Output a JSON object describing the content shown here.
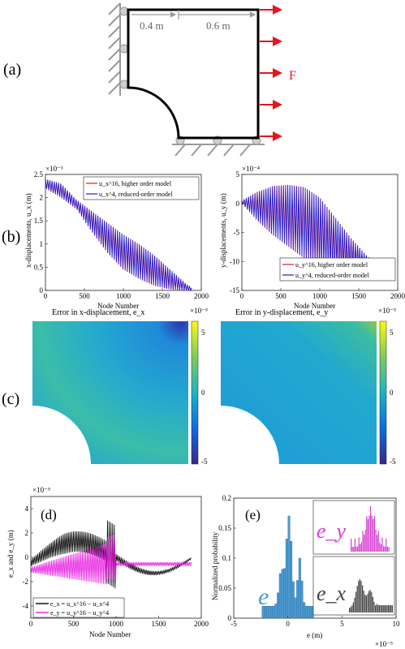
{
  "panels": {
    "a": {
      "label": "(a)",
      "dim_left": "0.4 m",
      "dim_right": "0.6 m",
      "force_label": "F",
      "colors": {
        "structure": "#000000",
        "force": "#e8141e",
        "support": "#999999",
        "roller": "#cfcfcf"
      }
    },
    "b": {
      "label": "(b)"
    },
    "c": {
      "label": "(c)"
    },
    "d": {
      "label": "(d)"
    },
    "e": {
      "label": "(e)"
    }
  },
  "chart_data": [
    {
      "id": "b-left",
      "type": "line",
      "xlabel": "Node Number",
      "ylabel": "x-displacements, u_x (m)",
      "exponent": "×10⁻³",
      "xlim": [
        0,
        2000
      ],
      "ylim": [
        0,
        2.5
      ],
      "xticks": [
        "0",
        "500",
        "1000",
        "1500",
        "2000"
      ],
      "yticks": [
        "0",
        "0.5",
        "1",
        "1.5",
        "2",
        "2.5"
      ],
      "series": [
        {
          "name": "u_x^16, higher order model",
          "color": "#e8141e"
        },
        {
          "name": "u_x^4, reduced-order model",
          "color": "#1a1adb"
        }
      ],
      "envelope": {
        "x": [
          0,
          200,
          400,
          600,
          800,
          1000,
          1200,
          1400,
          1600,
          1800,
          1880
        ],
        "upper": [
          2.4,
          2.3,
          1.95,
          1.7,
          1.45,
          1.2,
          1.0,
          0.75,
          0.45,
          0.15,
          0.05
        ],
        "lower": [
          2.2,
          2.0,
          1.75,
          1.25,
          0.8,
          0.45,
          0.25,
          0.1,
          0.02,
          0.0,
          0.0
        ]
      }
    },
    {
      "id": "b-right",
      "type": "line",
      "xlabel": "Node Number",
      "ylabel": "y-displacements, u_y (m)",
      "exponent": "×10⁻⁴",
      "xlim": [
        0,
        2000
      ],
      "ylim": [
        -15,
        5
      ],
      "xticks": [
        "0",
        "500",
        "1000",
        "1500",
        "2000"
      ],
      "yticks": [
        "-15",
        "-10",
        "-5",
        "0",
        "5"
      ],
      "series": [
        {
          "name": "u_y^16, higher order model",
          "color": "#e8141e"
        },
        {
          "name": "u_y^4, reduced-order model",
          "color": "#1a1adb"
        }
      ],
      "envelope": {
        "x": [
          0,
          200,
          400,
          600,
          800,
          1000,
          1200,
          1400,
          1600,
          1800,
          1880
        ],
        "upper": [
          0.5,
          2.0,
          3.0,
          3.2,
          2.8,
          1.0,
          -2.5,
          -6.0,
          -9.0,
          -11.5,
          -12.0
        ],
        "lower": [
          0.0,
          -3.0,
          -5.5,
          -7.5,
          -9.5,
          -11.0,
          -11.5,
          -12.0,
          -12.0,
          -12.3,
          -12.3
        ]
      }
    },
    {
      "id": "c-left",
      "type": "heatmap",
      "title": "Error in x-displacement, e_x",
      "colorbar_exponent": "×10⁻⁵",
      "colorbar_ticks": [
        "5",
        "0",
        "-5"
      ],
      "range": [
        -5,
        5
      ]
    },
    {
      "id": "c-right",
      "type": "heatmap",
      "title": "Error in y-displacement, e_y",
      "colorbar_exponent": "×10⁻⁵",
      "colorbar_ticks": [
        "5",
        "0",
        "-5"
      ],
      "range": [
        -5,
        5
      ]
    },
    {
      "id": "d",
      "type": "line",
      "xlabel": "Node Number",
      "ylabel": "e_x and e_y (m)",
      "exponent": "×10⁻⁵",
      "xlim": [
        0,
        2000
      ],
      "ylim": [
        -5,
        5
      ],
      "xticks": [
        "0",
        "500",
        "1000",
        "1500",
        "2000"
      ],
      "yticks": [
        "-4",
        "-2",
        "0",
        "2",
        "4"
      ],
      "series": [
        {
          "name": "e_x = u_x^16 − u_x^4",
          "color": "#000000"
        },
        {
          "name": "e_y = u_y^16 − u_y^4",
          "color": "#e81ee0"
        }
      ]
    },
    {
      "id": "e",
      "type": "bar",
      "xlabel": "e (m)",
      "ylabel": "Normalized probability",
      "exponent": "×10⁻⁵",
      "xlim": [
        -5,
        10
      ],
      "ylim": [
        0,
        0.2
      ],
      "xticks": [
        "-5",
        "0",
        "5",
        "10"
      ],
      "yticks": [
        "0",
        "0.05",
        "0.1",
        "0.15",
        "0.2"
      ],
      "series": [
        {
          "name": "e",
          "color": "#4c9bd1"
        },
        {
          "name": "e_y",
          "color": "#d43fd0"
        },
        {
          "name": "e_x",
          "color": "#444444"
        }
      ],
      "inset_labels": {
        "main": "e",
        "y": "e_y",
        "x": "e_x"
      }
    }
  ]
}
